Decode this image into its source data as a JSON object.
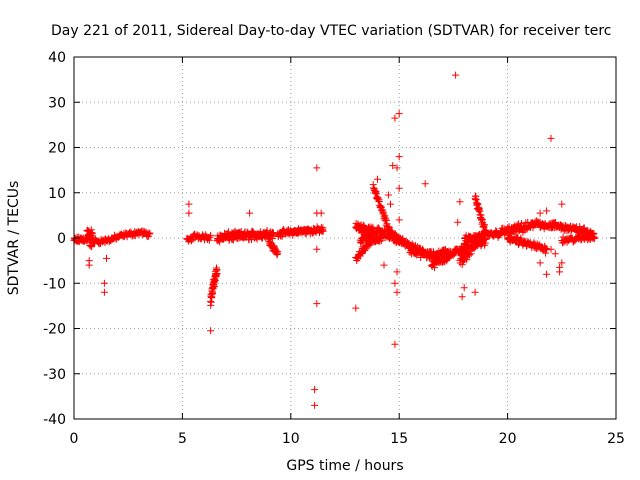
{
  "chart_data": {
    "type": "scatter",
    "title": "Day 221 of 2011, Sidereal Day-to-day VTEC variation (SDTVAR) for receiver terc",
    "xlabel": "GPS time / hours",
    "ylabel": "SDTVAR / TECUs",
    "xlim": [
      0,
      25
    ],
    "ylim": [
      -40,
      40
    ],
    "xticks": [
      0,
      5,
      10,
      15,
      20,
      25
    ],
    "yticks": [
      -40,
      -30,
      -20,
      -10,
      0,
      10,
      20,
      30,
      40
    ],
    "grid": true,
    "marker": "+",
    "color": "#ff0000",
    "series": [
      {
        "name": "SDTVAR",
        "segments": [
          {
            "x0": 0.0,
            "x1": 0.6,
            "n": 40,
            "base": [
              [
                0.0,
                -0.5
              ],
              [
                0.6,
                -0.2
              ]
            ],
            "noise": 0.8
          },
          {
            "x0": 0.6,
            "x1": 0.9,
            "n": 30,
            "base": [
              [
                0.6,
                0.5
              ],
              [
                0.9,
                -0.5
              ]
            ],
            "noise": 2.5
          },
          {
            "x0": 0.9,
            "x1": 3.5,
            "n": 90,
            "base": [
              [
                0.9,
                -0.8
              ],
              [
                1.5,
                -0.6
              ],
              [
                2.0,
                0.2
              ],
              [
                2.5,
                0.8
              ],
              [
                3.0,
                1.2
              ],
              [
                3.5,
                0.8
              ]
            ],
            "noise": 0.7
          },
          {
            "x0": 5.2,
            "x1": 6.3,
            "n": 40,
            "base": [
              [
                5.2,
                -0.8
              ],
              [
                5.6,
                0.5
              ],
              [
                6.3,
                0.2
              ]
            ],
            "noise": 0.8
          },
          {
            "x0": 6.3,
            "x1": 6.6,
            "n": 45,
            "base": [
              [
                6.3,
                -14.0
              ],
              [
                6.45,
                -10.0
              ],
              [
                6.6,
                -7.0
              ]
            ],
            "noise": 1.5
          },
          {
            "x0": 6.6,
            "x1": 9.2,
            "n": 160,
            "base": [
              [
                6.6,
                0.0
              ],
              [
                7.0,
                0.3
              ],
              [
                8.0,
                0.5
              ],
              [
                9.2,
                1.0
              ]
            ],
            "noise": 1.2
          },
          {
            "x0": 9.0,
            "x1": 9.4,
            "n": 30,
            "base": [
              [
                9.0,
                -1.0
              ],
              [
                9.4,
                -3.5
              ]
            ],
            "noise": 0.8
          },
          {
            "x0": 9.4,
            "x1": 11.5,
            "n": 120,
            "base": [
              [
                9.4,
                1.0
              ],
              [
                10.5,
                1.5
              ],
              [
                11.5,
                1.8
              ]
            ],
            "noise": 0.8
          },
          {
            "x0": 13.0,
            "x1": 13.8,
            "n": 60,
            "base": [
              [
                13.0,
                2.5
              ],
              [
                13.8,
                1.5
              ]
            ],
            "noise": 1.0
          },
          {
            "x0": 13.0,
            "x1": 14.2,
            "n": 60,
            "base": [
              [
                13.0,
                -4.5
              ],
              [
                13.6,
                -1.0
              ],
              [
                14.2,
                0.0
              ]
            ],
            "noise": 0.8
          },
          {
            "x0": 13.8,
            "x1": 15.2,
            "n": 80,
            "base": [
              [
                13.8,
                11.5
              ],
              [
                14.2,
                6.0
              ],
              [
                14.6,
                1.0
              ],
              [
                15.2,
                -1.0
              ]
            ],
            "noise": 1.0
          },
          {
            "x0": 13.2,
            "x1": 15.8,
            "n": 120,
            "base": [
              [
                13.2,
                -0.5
              ],
              [
                14.0,
                1.5
              ],
              [
                14.8,
                0.0
              ],
              [
                15.8,
                -2.5
              ]
            ],
            "noise": 1.0
          },
          {
            "x0": 15.5,
            "x1": 17.3,
            "n": 100,
            "base": [
              [
                15.5,
                -2.5
              ],
              [
                16.5,
                -4.0
              ],
              [
                17.3,
                -3.0
              ]
            ],
            "noise": 1.2
          },
          {
            "x0": 16.5,
            "x1": 18.2,
            "n": 80,
            "base": [
              [
                16.5,
                -6.0
              ],
              [
                17.3,
                -4.0
              ],
              [
                18.2,
                -1.5
              ]
            ],
            "noise": 1.0
          },
          {
            "x0": 17.8,
            "x1": 19.0,
            "n": 80,
            "base": [
              [
                17.8,
                -5.0
              ],
              [
                18.4,
                -2.0
              ],
              [
                19.0,
                0.0
              ]
            ],
            "noise": 1.5
          },
          {
            "x0": 18.5,
            "x1": 19.0,
            "n": 40,
            "base": [
              [
                18.5,
                9.0
              ],
              [
                18.8,
                4.0
              ],
              [
                19.0,
                1.0
              ]
            ],
            "noise": 1.0
          },
          {
            "x0": 18.0,
            "x1": 21.5,
            "n": 160,
            "base": [
              [
                18.0,
                -0.5
              ],
              [
                19.0,
                0.5
              ],
              [
                20.0,
                1.5
              ],
              [
                21.0,
                2.5
              ],
              [
                21.5,
                3.5
              ]
            ],
            "noise": 1.2
          },
          {
            "x0": 20.0,
            "x1": 21.8,
            "n": 80,
            "base": [
              [
                20.0,
                0.0
              ],
              [
                21.0,
                -1.5
              ],
              [
                21.8,
                -2.5
              ]
            ],
            "noise": 1.0
          },
          {
            "x0": 21.5,
            "x1": 24.0,
            "n": 120,
            "base": [
              [
                21.5,
                3.0
              ],
              [
                22.5,
                2.5
              ],
              [
                23.5,
                1.5
              ],
              [
                24.0,
                0.8
              ]
            ],
            "noise": 1.0
          },
          {
            "x0": 22.5,
            "x1": 24.0,
            "n": 50,
            "base": [
              [
                22.5,
                -0.5
              ],
              [
                24.0,
                0.2
              ]
            ],
            "noise": 0.8
          }
        ],
        "outliers": [
          [
            0.7,
            -5.0
          ],
          [
            0.7,
            -6.0
          ],
          [
            1.4,
            -10.0
          ],
          [
            1.4,
            -12.0
          ],
          [
            1.5,
            -4.5
          ],
          [
            5.3,
            7.5
          ],
          [
            5.3,
            5.5
          ],
          [
            6.3,
            -20.5
          ],
          [
            8.1,
            5.5
          ],
          [
            11.2,
            15.5
          ],
          [
            11.2,
            5.5
          ],
          [
            11.4,
            5.5
          ],
          [
            11.2,
            -2.5
          ],
          [
            11.2,
            -14.5
          ],
          [
            11.1,
            -33.5
          ],
          [
            11.1,
            -37.0
          ],
          [
            13.0,
            -15.5
          ],
          [
            14.0,
            13.0
          ],
          [
            13.9,
            10.0
          ],
          [
            14.5,
            9.5
          ],
          [
            14.6,
            7.5
          ],
          [
            14.8,
            26.5
          ],
          [
            15.0,
            27.5
          ],
          [
            14.7,
            16.0
          ],
          [
            15.0,
            18.0
          ],
          [
            14.9,
            15.5
          ],
          [
            15.0,
            11.0
          ],
          [
            15.0,
            4.0
          ],
          [
            14.3,
            -6.0
          ],
          [
            14.9,
            -7.5
          ],
          [
            14.8,
            -10.0
          ],
          [
            14.9,
            -12.0
          ],
          [
            14.8,
            -23.5
          ],
          [
            16.2,
            12.0
          ],
          [
            17.6,
            36.0
          ],
          [
            17.8,
            8.0
          ],
          [
            17.7,
            3.5
          ],
          [
            18.0,
            -11.0
          ],
          [
            17.9,
            -13.0
          ],
          [
            18.5,
            -12.0
          ],
          [
            21.5,
            5.5
          ],
          [
            21.8,
            6.0
          ],
          [
            22.0,
            22.0
          ],
          [
            21.5,
            -5.5
          ],
          [
            21.8,
            -8.0
          ],
          [
            22.5,
            -5.5
          ],
          [
            22.4,
            -6.5
          ],
          [
            22.4,
            -7.5
          ],
          [
            22.0,
            -2.5
          ],
          [
            22.2,
            -3.5
          ],
          [
            22.5,
            7.5
          ]
        ]
      }
    ]
  }
}
